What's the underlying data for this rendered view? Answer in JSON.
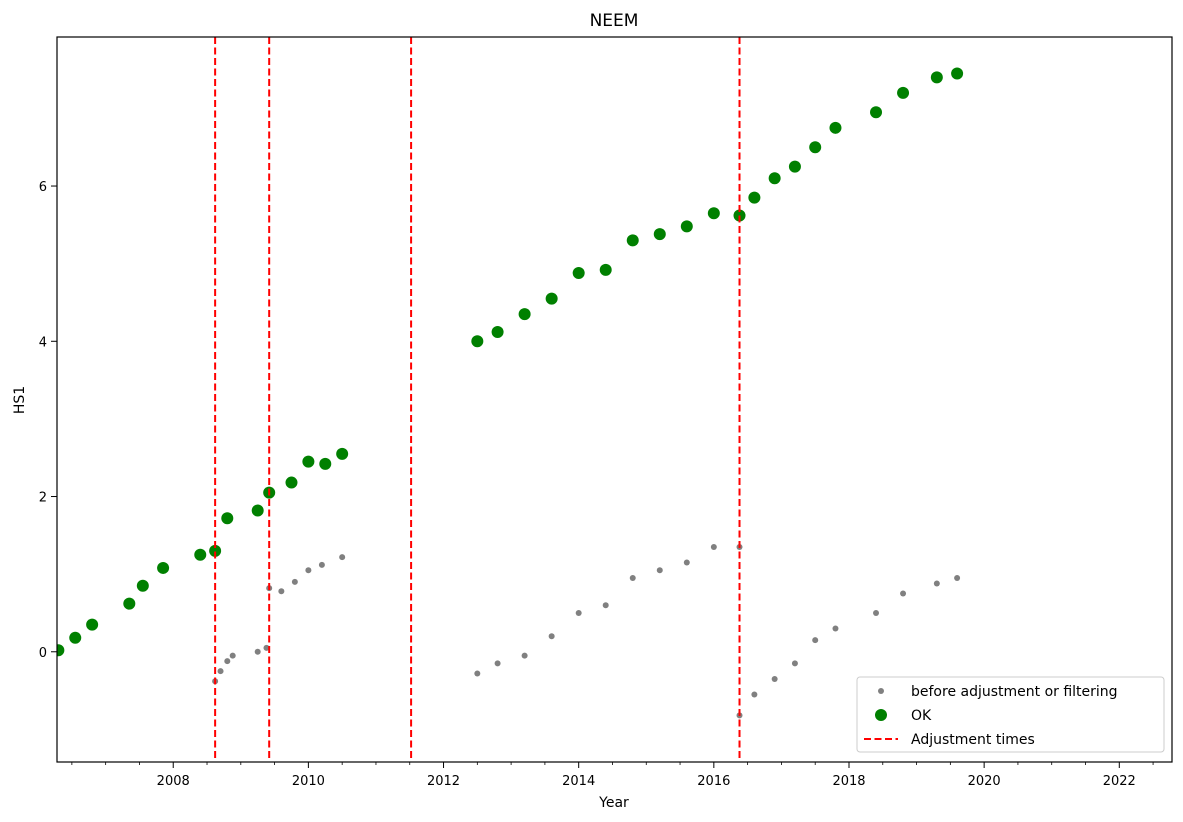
{
  "chart_data": {
    "type": "scatter",
    "title": "NEEM",
    "xlabel": "Year",
    "ylabel": "HS1",
    "xlim": [
      2006.28,
      2022.78
    ],
    "ylim": [
      -1.42,
      7.92
    ],
    "x_ticks": [
      2008,
      2010,
      2012,
      2014,
      2016,
      2018,
      2020,
      2022
    ],
    "x_tick_labels": [
      "2008",
      "2010",
      "2012",
      "2014",
      "2016",
      "2018",
      "2020",
      "2022"
    ],
    "y_ticks": [
      0,
      2,
      4,
      6
    ],
    "y_tick_labels": [
      "0",
      "2",
      "4",
      "6"
    ],
    "grid": false,
    "legend_position": "lower-right",
    "adjustment_times": [
      2008.62,
      2009.42,
      2011.52,
      2016.38
    ],
    "series": [
      {
        "name": "before adjustment or filtering",
        "color": "#808080",
        "marker": "small-dot",
        "x": [
          2008.62,
          2008.7,
          2008.8,
          2008.88,
          2009.25,
          2009.38,
          2009.42,
          2009.6,
          2009.8,
          2010.0,
          2010.2,
          2010.5,
          2012.5,
          2012.8,
          2013.2,
          2013.6,
          2014.0,
          2014.4,
          2014.8,
          2015.2,
          2015.6,
          2016.0,
          2016.38,
          2016.38,
          2016.6,
          2016.9,
          2017.2,
          2017.5,
          2017.8,
          2018.0,
          2018.4,
          2018.8,
          2019.3,
          2019.6
        ],
        "y": [
          -0.38,
          -0.25,
          -0.12,
          -0.05,
          0.0,
          0.05,
          0.82,
          0.78,
          0.9,
          1.05,
          1.12,
          1.22,
          -0.28,
          -0.15,
          -0.05,
          0.2,
          0.5,
          0.6,
          0.95,
          1.05,
          1.15,
          1.35,
          1.35,
          -0.82,
          -0.55,
          -0.35,
          -0.15,
          0.15,
          0.3,
          null,
          0.5,
          0.75,
          0.88,
          0.95
        ]
      },
      {
        "name": "OK",
        "color": "#008000",
        "marker": "large-dot",
        "x": [
          2006.3,
          2006.55,
          2006.8,
          2007.35,
          2007.55,
          2007.85,
          2008.4,
          2008.62,
          2008.8,
          2009.25,
          2009.42,
          2009.75,
          2010.0,
          2010.25,
          2010.5,
          2012.5,
          2012.8,
          2013.2,
          2013.6,
          2014.0,
          2014.4,
          2014.8,
          2015.2,
          2015.6,
          2016.0,
          2016.38,
          2016.6,
          2016.9,
          2017.2,
          2017.5,
          2017.8,
          2018.0,
          2018.4,
          2018.8,
          2019.3,
          2019.6
        ],
        "y": [
          0.02,
          0.18,
          0.35,
          0.62,
          0.85,
          1.08,
          1.25,
          1.3,
          1.72,
          1.82,
          2.05,
          2.18,
          2.45,
          2.42,
          2.55,
          4.0,
          4.12,
          4.35,
          4.55,
          4.88,
          4.92,
          5.3,
          5.38,
          5.48,
          5.65,
          5.62,
          5.85,
          6.1,
          6.25,
          6.5,
          6.75,
          null,
          6.95,
          7.2,
          7.4,
          7.45
        ]
      },
      {
        "name": "Adjustment times",
        "color": "#ff0000",
        "marker": "dashed-vertical-line"
      }
    ]
  }
}
